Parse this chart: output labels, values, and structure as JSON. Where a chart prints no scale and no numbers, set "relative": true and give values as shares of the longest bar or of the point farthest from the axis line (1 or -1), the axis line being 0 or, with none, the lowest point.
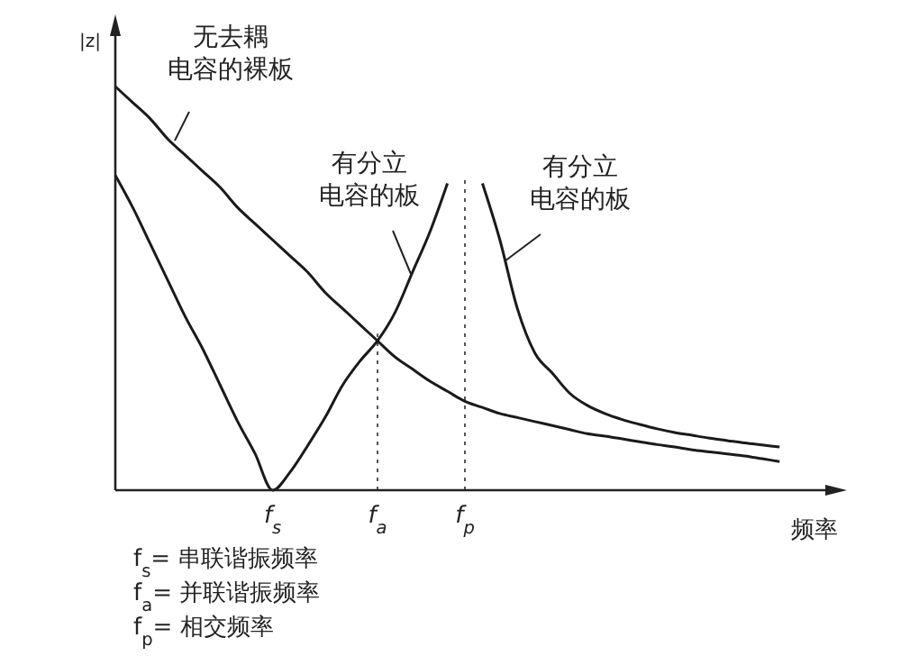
{
  "chart_data": {
    "type": "line",
    "relative": true,
    "ylabel": "|z|",
    "xlabel": "频率",
    "marker": "none",
    "line_style": "solid",
    "grid": false,
    "categories": [
      null,
      null,
      null,
      null,
      null,
      null,
      null,
      null,
      null,
      "f$_{s}$",
      null,
      null,
      null,
      null,
      null,
      "f$_{a}$",
      null,
      null,
      null,
      null,
      "f$_{p}$",
      null,
      null,
      null,
      null,
      null,
      null,
      null,
      null,
      null,
      null,
      null,
      null,
      null,
      null,
      null,
      null,
      null,
      null,
      null,
      null,
      null
    ],
    "series": [
      {
        "name": "无去耦电容的裸板",
        "color": "#1a1a1a",
        "values": [
          1,
          0.96,
          0.92,
          0.87,
          0.83,
          0.79,
          0.75,
          0.7,
          0.66,
          0.62,
          0.58,
          0.54,
          0.49,
          0.45,
          0.41,
          0.37,
          0.33,
          0.3,
          0.27,
          0.245,
          0.22,
          0.205,
          0.19,
          0.18,
          0.17,
          0.16,
          0.15,
          0.14,
          0.134,
          0.127,
          0.12,
          0.113,
          0.107,
          0.1,
          0.095,
          0.09,
          0.085,
          0.078,
          0.071,
          null,
          null,
          null
        ]
      },
      {
        "name": "有分立电容的板",
        "color": "#1a1a1a",
        "values": [
          0.78,
          0.7,
          0.61,
          0.52,
          0.43,
          0.35,
          0.26,
          0.17,
          0.09,
          0,
          0.045,
          0.11,
          0.18,
          0.26,
          0.32,
          0.37,
          0.44,
          0.54,
          0.64,
          0.76,
          null,
          null,
          null,
          null,
          null,
          null,
          null,
          null,
          null,
          null,
          null,
          null,
          null,
          null,
          null,
          null,
          null,
          null,
          null,
          null,
          null,
          null
        ]
      },
      {
        "name": "有分立电容的板",
        "color": "#1a1a1a",
        "values": [
          null,
          null,
          null,
          null,
          null,
          null,
          null,
          null,
          null,
          null,
          null,
          null,
          null,
          null,
          null,
          null,
          null,
          null,
          null,
          null,
          null,
          0.76,
          0.62,
          0.45,
          0.34,
          0.29,
          0.24,
          0.21,
          0.19,
          0.175,
          0.163,
          0.152,
          0.143,
          0.136,
          0.129,
          0.123,
          0.117,
          0.112,
          0.107,
          null,
          null,
          null
        ]
      }
    ],
    "ref_lines": [
      {
        "axis": "x",
        "value": "f$_{a}$",
        "line_style": "dotted",
        "color": "#555555"
      },
      {
        "axis": "x",
        "value": "f$_{p}$",
        "line_style": "dotted",
        "color": "#555555"
      }
    ],
    "annotations": [
      "f$_{s}$= 串联谐振频率",
      "f$_{a}$= 并联谐振频率",
      "f$_{p}$= 相交频率"
    ]
  }
}
